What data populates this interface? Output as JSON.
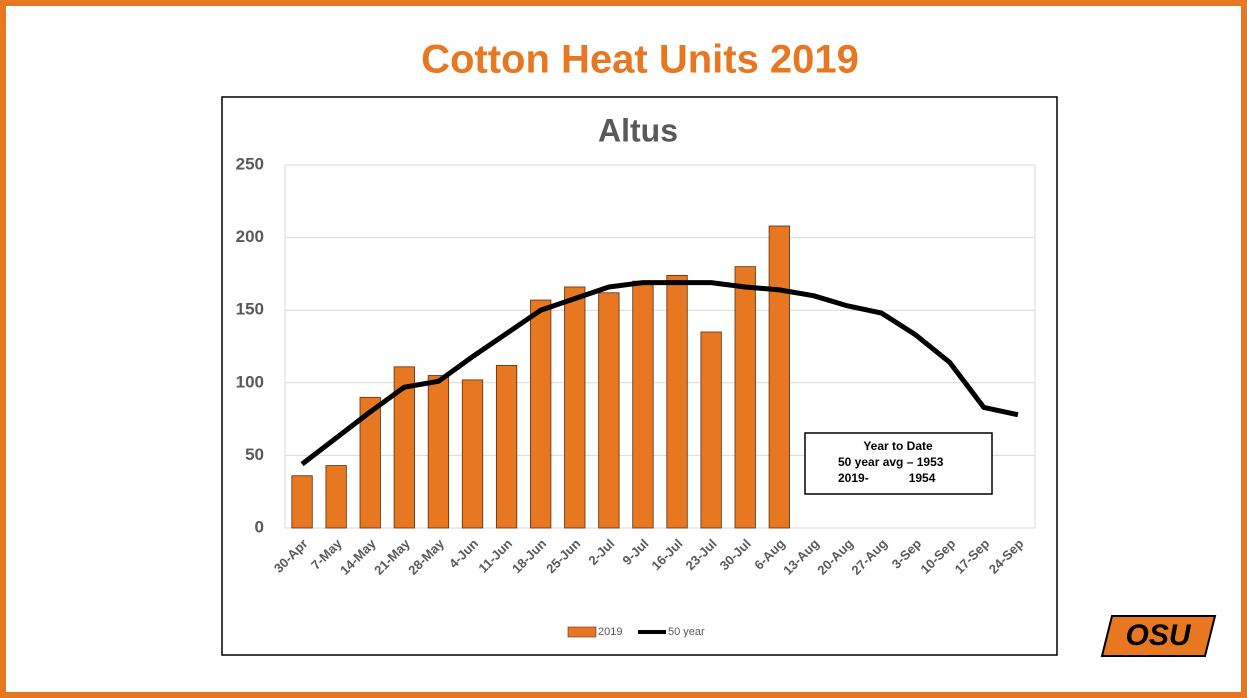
{
  "slide_title": "Cotton Heat Units 2019",
  "logo": "OSU",
  "chart_data": {
    "type": "bar_line",
    "title": "Altus",
    "categories": [
      "30-Apr",
      "7-May",
      "14-May",
      "21-May",
      "28-May",
      "4-Jun",
      "11-Jun",
      "18-Jun",
      "25-Jun",
      "2-Jul",
      "9-Jul",
      "16-Jul",
      "23-Jul",
      "30-Jul",
      "6-Aug",
      "13-Aug",
      "20-Aug",
      "27-Aug",
      "3-Sep",
      "10-Sep",
      "17-Sep",
      "24-Sep"
    ],
    "series": [
      {
        "name": "2019",
        "type": "bar",
        "color": "#e87722",
        "values": [
          36,
          43,
          90,
          111,
          105,
          102,
          112,
          157,
          166,
          162,
          170,
          174,
          135,
          180,
          208,
          null,
          null,
          null,
          null,
          null,
          null,
          null
        ]
      },
      {
        "name": "50 year",
        "type": "line",
        "color": "#000000",
        "values": [
          44,
          62,
          80,
          97,
          101,
          118,
          134,
          150,
          158,
          166,
          169,
          169,
          169,
          166,
          164,
          160,
          153,
          148,
          133,
          114,
          83,
          78
        ]
      }
    ],
    "ylim": [
      0,
      250
    ],
    "yticks": [
      0,
      50,
      100,
      150,
      200,
      250
    ],
    "grid": true,
    "legend": "bottom",
    "annotation": [
      "Year to Date",
      "50 year avg – 1953",
      "2019-            1954"
    ]
  }
}
